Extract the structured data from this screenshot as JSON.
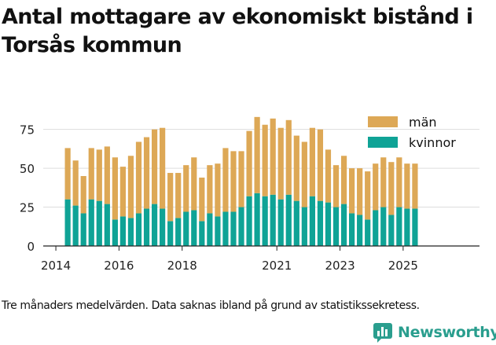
{
  "title": "Antal mottagare av ekonomiskt bistånd i Torsås kommun",
  "caption": "Tre månaders medelvärden. Data saknas ibland på grund av statistikssekretess.",
  "brand": {
    "name": "Newsworthy",
    "icon": "bar-chart-logo-icon",
    "color": "#2a9e8e"
  },
  "colors": {
    "kvinnor": "#0fa396",
    "man": "#dda856",
    "grid": "#dddddd",
    "axis": "#222222"
  },
  "chart_data": {
    "type": "bar",
    "stacked": true,
    "grid": true,
    "legend_position": "top-right",
    "ylim": [
      0,
      90
    ],
    "yticks": [
      0,
      25,
      50,
      75
    ],
    "xticks": [
      {
        "label": "2014",
        "x": 2014
      },
      {
        "label": "2016",
        "x": 2016
      },
      {
        "label": "2018",
        "x": 2018
      },
      {
        "label": "2021",
        "x": 2021
      },
      {
        "label": "2023",
        "x": 2023
      },
      {
        "label": "2025",
        "x": 2025
      }
    ],
    "x": [
      2014.375,
      2014.625,
      2014.875,
      2015.125,
      2015.375,
      2015.625,
      2015.875,
      2016.125,
      2016.375,
      2016.625,
      2016.875,
      2017.125,
      2017.375,
      2017.625,
      2017.875,
      2018.125,
      2018.375,
      2018.625,
      2018.875,
      2019.125,
      2019.375,
      2019.625,
      2019.875,
      2020.125,
      2020.375,
      2020.625,
      2020.875,
      2021.125,
      2021.375,
      2021.625,
      2021.875,
      2022.125,
      2022.375,
      2022.625,
      2022.875,
      2023.125,
      2023.375,
      2023.625,
      2023.875,
      2024.125,
      2024.375,
      2024.625,
      2024.875,
      2025.125,
      2025.375
    ],
    "series": [
      {
        "name": "kvinnor",
        "color": "#0fa396",
        "values": [
          30,
          26,
          21,
          30,
          29,
          27,
          17,
          19,
          18,
          21,
          24,
          27,
          24,
          16,
          18,
          22,
          23,
          16,
          21,
          19,
          22,
          22,
          25,
          32,
          34,
          32,
          33,
          30,
          33,
          29,
          25,
          32,
          29,
          28,
          25,
          27,
          21,
          20,
          17,
          23,
          25,
          20,
          25,
          24,
          24
        ]
      },
      {
        "name": "män",
        "color": "#dda856",
        "values": [
          33,
          29,
          24,
          33,
          33,
          37,
          40,
          32,
          40,
          46,
          46,
          48,
          52,
          31,
          29,
          30,
          34,
          28,
          31,
          34,
          41,
          39,
          36,
          42,
          49,
          46,
          49,
          46,
          48,
          42,
          42,
          44,
          46,
          34,
          27,
          31,
          29,
          30,
          31,
          30,
          32,
          34,
          32,
          29,
          29
        ]
      }
    ]
  }
}
